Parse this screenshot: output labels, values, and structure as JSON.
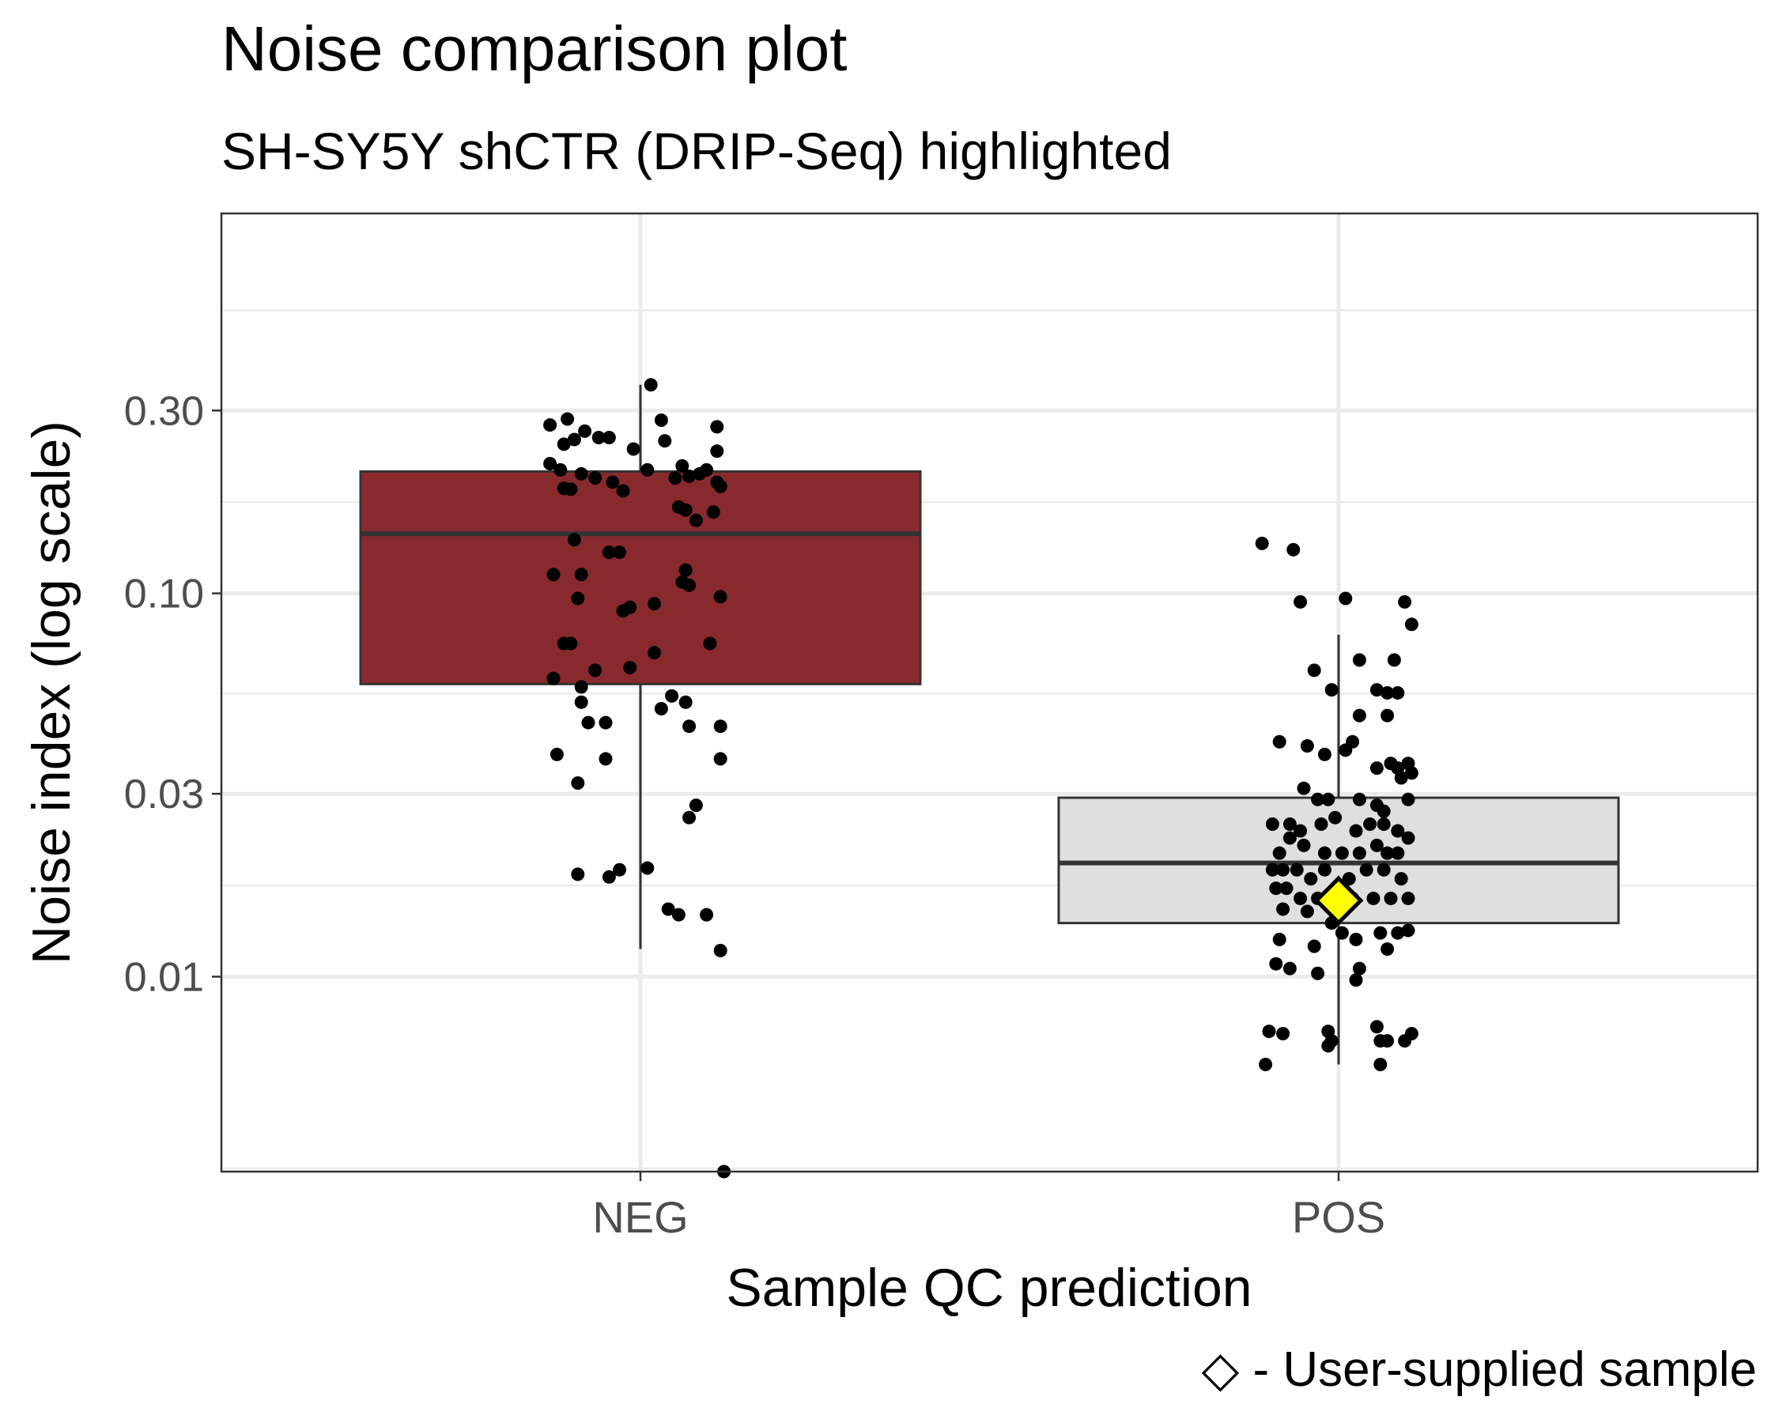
{
  "chart_data": {
    "type": "box",
    "title": "Noise comparison plot",
    "subtitle": "SH-SY5Y shCTR (DRIP-Seq) highlighted",
    "xlabel": "Sample QC prediction",
    "ylabel": "Noise index (log scale)",
    "y_scale": "log10",
    "ylim": [
      0.0031,
      0.98
    ],
    "y_ticks": [
      0.01,
      0.03,
      0.1,
      0.3
    ],
    "y_tick_labels": [
      "0.01",
      "0.03",
      "0.10",
      "0.30"
    ],
    "y_minor_gridlines": [
      0.00316,
      0.0173,
      0.0548,
      0.173,
      0.548
    ],
    "categories": [
      "NEG",
      "POS"
    ],
    "grid": true,
    "caption": "◇ - User-supplied sample",
    "colors": {
      "NEG": "#882A2D",
      "POS": "#E0DFE0",
      "highlight": "#FFFF00",
      "points": "#000000",
      "box_line": "#333333",
      "grid": "#EBEBEB"
    },
    "boxes": [
      {
        "category": "NEG",
        "whisker_low": 0.0118,
        "q1": 0.058,
        "median": 0.143,
        "q3": 0.208,
        "whisker_high": 0.35
      },
      {
        "category": "POS",
        "whisker_low": 0.0059,
        "q1": 0.0138,
        "median": 0.0198,
        "q3": 0.0293,
        "whisker_high": 0.078
      }
    ],
    "points": {
      "NEG": [
        [
          -0.13,
          0.275
        ],
        [
          -0.105,
          0.285
        ],
        [
          -0.08,
          0.265
        ],
        [
          -0.11,
          0.245
        ],
        [
          -0.115,
          0.21
        ],
        [
          -0.095,
          0.252
        ],
        [
          -0.06,
          0.255
        ],
        [
          -0.045,
          0.255
        ],
        [
          -0.01,
          0.238
        ],
        [
          0.015,
          0.35
        ],
        [
          0.03,
          0.283
        ],
        [
          0.035,
          0.25
        ],
        [
          0.11,
          0.272
        ],
        [
          0.11,
          0.235
        ],
        [
          -0.13,
          0.218
        ],
        [
          -0.11,
          0.188
        ],
        [
          -0.065,
          0.2
        ],
        [
          -0.04,
          0.195
        ],
        [
          0.01,
          0.21
        ],
        [
          0.06,
          0.215
        ],
        [
          0.085,
          0.205
        ],
        [
          0.11,
          0.195
        ],
        [
          -0.1,
          0.187
        ],
        [
          -0.085,
          0.205
        ],
        [
          0.05,
          0.2
        ],
        [
          0.07,
          0.202
        ],
        [
          0.095,
          0.21
        ],
        [
          0.115,
          0.19
        ],
        [
          -0.025,
          0.185
        ],
        [
          -0.095,
          0.138
        ],
        [
          -0.045,
          0.128
        ],
        [
          -0.03,
          0.128
        ],
        [
          0.055,
          0.168
        ],
        [
          0.065,
          0.165
        ],
        [
          0.105,
          0.163
        ],
        [
          0.08,
          0.155
        ],
        [
          -0.125,
          0.112
        ],
        [
          -0.085,
          0.112
        ],
        [
          0.065,
          0.115
        ],
        [
          0.06,
          0.107
        ],
        [
          0.07,
          0.105
        ],
        [
          -0.09,
          0.097
        ],
        [
          -0.025,
          0.09
        ],
        [
          -0.015,
          0.092
        ],
        [
          0.02,
          0.094
        ],
        [
          0.115,
          0.098
        ],
        [
          -0.11,
          0.074
        ],
        [
          -0.1,
          0.074
        ],
        [
          0.1,
          0.074
        ],
        [
          0.02,
          0.07
        ],
        [
          -0.065,
          0.063
        ],
        [
          -0.015,
          0.064
        ],
        [
          -0.125,
          0.06
        ],
        [
          -0.085,
          0.057
        ],
        [
          -0.085,
          0.052
        ],
        [
          0.045,
          0.054
        ],
        [
          0.065,
          0.052
        ],
        [
          0.03,
          0.05
        ],
        [
          -0.075,
          0.046
        ],
        [
          -0.05,
          0.046
        ],
        [
          0.07,
          0.045
        ],
        [
          0.115,
          0.045
        ],
        [
          -0.12,
          0.038
        ],
        [
          -0.05,
          0.037
        ],
        [
          0.115,
          0.037
        ],
        [
          -0.09,
          0.032
        ],
        [
          0.08,
          0.028
        ],
        [
          0.07,
          0.026
        ],
        [
          -0.09,
          0.0185
        ],
        [
          -0.045,
          0.0182
        ],
        [
          -0.03,
          0.019
        ],
        [
          0.01,
          0.0192
        ],
        [
          0.04,
          0.015
        ],
        [
          0.055,
          0.0145
        ],
        [
          0.095,
          0.0145
        ],
        [
          0.115,
          0.0117
        ],
        [
          0.12,
          0.0031
        ]
      ],
      "POS": [
        [
          -0.11,
          0.135
        ],
        [
          -0.065,
          0.13
        ],
        [
          -0.055,
          0.095
        ],
        [
          0.01,
          0.097
        ],
        [
          0.095,
          0.095
        ],
        [
          0.105,
          0.083
        ],
        [
          -0.035,
          0.063
        ],
        [
          0.03,
          0.067
        ],
        [
          0.08,
          0.067
        ],
        [
          0.055,
          0.056
        ],
        [
          0.07,
          0.055
        ],
        [
          0.085,
          0.055
        ],
        [
          -0.01,
          0.056
        ],
        [
          0.03,
          0.048
        ],
        [
          0.07,
          0.048
        ],
        [
          -0.085,
          0.041
        ],
        [
          -0.045,
          0.04
        ],
        [
          -0.02,
          0.038
        ],
        [
          0.01,
          0.039
        ],
        [
          0.02,
          0.041
        ],
        [
          0.055,
          0.035
        ],
        [
          0.075,
          0.036
        ],
        [
          0.085,
          0.035
        ],
        [
          0.09,
          0.033
        ],
        [
          0.1,
          0.036
        ],
        [
          0.105,
          0.034
        ],
        [
          -0.05,
          0.031
        ],
        [
          -0.03,
          0.029
        ],
        [
          -0.015,
          0.029
        ],
        [
          0.03,
          0.029
        ],
        [
          0.055,
          0.028
        ],
        [
          0.065,
          0.027
        ],
        [
          0.1,
          0.029
        ],
        [
          -0.095,
          0.025
        ],
        [
          -0.07,
          0.025
        ],
        [
          -0.055,
          0.024
        ],
        [
          -0.025,
          0.025
        ],
        [
          -0.005,
          0.026
        ],
        [
          0.025,
          0.024
        ],
        [
          0.045,
          0.025
        ],
        [
          0.065,
          0.025
        ],
        [
          0.085,
          0.024
        ],
        [
          0.1,
          0.023
        ],
        [
          -0.085,
          0.021
        ],
        [
          -0.07,
          0.023
        ],
        [
          -0.05,
          0.022
        ],
        [
          -0.02,
          0.021
        ],
        [
          0.005,
          0.021
        ],
        [
          0.03,
          0.021
        ],
        [
          0.055,
          0.022
        ],
        [
          0.07,
          0.021
        ],
        [
          0.085,
          0.021
        ],
        [
          -0.095,
          0.019
        ],
        [
          -0.08,
          0.019
        ],
        [
          -0.06,
          0.019
        ],
        [
          -0.04,
          0.018
        ],
        [
          -0.02,
          0.019
        ],
        [
          0.015,
          0.018
        ],
        [
          0.04,
          0.019
        ],
        [
          0.065,
          0.019
        ],
        [
          0.09,
          0.018
        ],
        [
          -0.09,
          0.017
        ],
        [
          -0.075,
          0.017
        ],
        [
          -0.055,
          0.016
        ],
        [
          -0.03,
          0.016
        ],
        [
          0.02,
          0.016
        ],
        [
          0.05,
          0.016
        ],
        [
          0.075,
          0.016
        ],
        [
          0.1,
          0.016
        ],
        [
          -0.08,
          0.015
        ],
        [
          -0.045,
          0.0148
        ],
        [
          -0.01,
          0.0138
        ],
        [
          0.005,
          0.013
        ],
        [
          0.06,
          0.013
        ],
        [
          0.085,
          0.013
        ],
        [
          0.1,
          0.0132
        ],
        [
          -0.085,
          0.0125
        ],
        [
          -0.035,
          0.012
        ],
        [
          0.025,
          0.0125
        ],
        [
          0.07,
          0.0118
        ],
        [
          -0.09,
          0.0108
        ],
        [
          -0.07,
          0.0105
        ],
        [
          -0.03,
          0.0102
        ],
        [
          0.03,
          0.0105
        ],
        [
          0.025,
          0.0098
        ],
        [
          -0.1,
          0.0072
        ],
        [
          -0.08,
          0.0071
        ],
        [
          -0.015,
          0.0072
        ],
        [
          0.055,
          0.0074
        ],
        [
          0.105,
          0.0071
        ],
        [
          -0.015,
          0.0066
        ],
        [
          -0.01,
          0.0068
        ],
        [
          0.06,
          0.0068
        ],
        [
          0.07,
          0.0068
        ],
        [
          0.095,
          0.0068
        ],
        [
          -0.105,
          0.0059
        ],
        [
          0.06,
          0.0059
        ]
      ]
    },
    "highlight": {
      "category": "POS",
      "label": "SH-SY5Y shCTR (DRIP-Seq)",
      "value": 0.0158,
      "marker": "diamond"
    }
  }
}
